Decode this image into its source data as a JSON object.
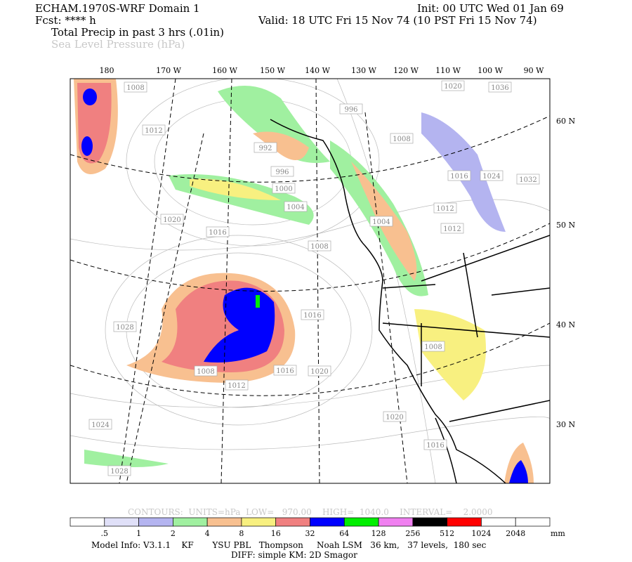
{
  "header": {
    "model": "ECHAM.1970S-WRF Domain 1",
    "fcst": "Fcst: **** h",
    "init": "Init: 00 UTC Wed 01 Jan 69",
    "valid": "Valid: 18 UTC Fri 15 Nov 74 (10 PST Fri 15 Nov 74)",
    "field_precip": "Total Precip in past 3 hrs (.01in)",
    "field_pressure": "Sea Level Pressure (hPa)"
  },
  "map": {
    "lon_labels": [
      "180",
      "170 W",
      "160 W",
      "150 W",
      "140 W",
      "130 W",
      "120 W",
      "110 W",
      "100 W",
      "90 W"
    ],
    "lat_labels": [
      "60 N",
      "50 N",
      "40 N",
      "30 N"
    ],
    "pressure_labels": [
      "1008",
      "1012",
      "1020",
      "1016",
      "1028",
      "1024",
      "1028",
      "996",
      "992",
      "996",
      "1000",
      "1004",
      "1004",
      "1008",
      "1016",
      "1020",
      "1012",
      "1008",
      "1016",
      "1012",
      "1012",
      "1016",
      "1024",
      "1032",
      "1020",
      "1036",
      "1008",
      "1020",
      "1016",
      "1008"
    ]
  },
  "contours": "CONTOURS:  UNITS=hPa  LOW=   970.00    HIGH=  1040.0    INTERVAL=    2.0000",
  "colorbar": {
    "labels": [
      ".5",
      "1",
      "2",
      "4",
      "8",
      "16",
      "32",
      "64",
      "128",
      "256",
      "512",
      "1024",
      "2048"
    ],
    "colors": [
      "#ffffff",
      "#e0e0f8",
      "#b4b4f0",
      "#a0f0a0",
      "#f8c090",
      "#f8f080",
      "#f08080",
      "#0000ff",
      "#00ee00",
      "#f080f0",
      "#000000",
      "#ff0000",
      "#ffffff",
      "#ffffff"
    ],
    "unit": "mm"
  },
  "footer": {
    "model_info": "Model Info: V3.1.1    KF       YSU PBL   Thompson     Noah LSM   36 km,   37 levels,  180 sec",
    "diff": "DIFF: simple KM: 2D Smagor"
  }
}
